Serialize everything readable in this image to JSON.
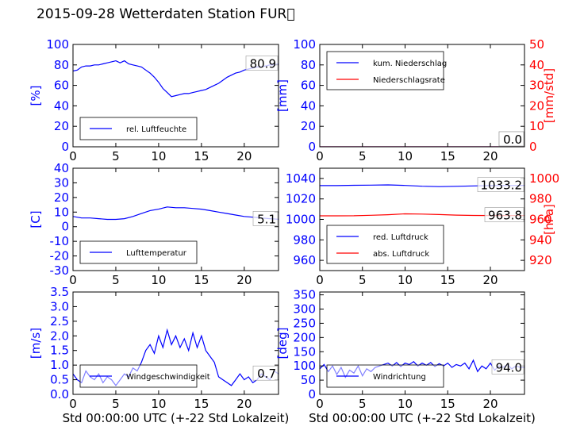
{
  "title": "2015-09-28 Wetterdaten Station FUR\u0000",
  "chart_data": [
    {
      "type": "line",
      "position": "row1-left",
      "ylabel": "[%]",
      "ylim": [
        0,
        100
      ],
      "yticks": [
        0,
        20,
        40,
        60,
        80,
        100
      ],
      "xlim": [
        0,
        24
      ],
      "xticks": [
        0,
        5,
        10,
        15,
        20
      ],
      "xlabel": "",
      "last_value_label": "80.9",
      "legend": "bottom-left",
      "series": [
        {
          "name": "rel. Luftfeuchte",
          "color": "#0000ff",
          "x": [
            0,
            0.5,
            1,
            1.5,
            2,
            2.5,
            3,
            3.5,
            4,
            4.5,
            5,
            5.5,
            6,
            6.5,
            7,
            7.5,
            8,
            8.5,
            9,
            9.5,
            10,
            10.5,
            11,
            11.5,
            12,
            12.5,
            13,
            13.5,
            14,
            14.5,
            15,
            15.5,
            16,
            16.5,
            17,
            17.5,
            18,
            18.5,
            19,
            19.5,
            20,
            20.5,
            21,
            21.5,
            22,
            22.5,
            23,
            23.5,
            24
          ],
          "y": [
            74,
            75,
            78,
            79,
            79,
            80,
            80,
            81,
            82,
            83,
            84,
            82,
            84,
            81,
            80,
            79,
            78,
            75,
            72,
            68,
            63,
            57,
            53,
            49,
            50,
            51,
            52,
            52,
            53,
            54,
            55,
            56,
            58,
            60,
            62,
            65,
            68,
            70,
            72,
            73,
            75,
            76,
            77,
            78,
            78,
            79,
            80,
            80,
            81
          ]
        }
      ]
    },
    {
      "type": "line",
      "position": "row1-right",
      "ylabel": "[mm]",
      "ylim": [
        0,
        100
      ],
      "yticks": [
        0,
        20,
        40,
        60,
        80,
        100
      ],
      "y2label": "[mm/std]",
      "y2lim": [
        0,
        50
      ],
      "y2ticks": [
        0,
        10,
        20,
        30,
        40,
        50
      ],
      "xlim": [
        0,
        24
      ],
      "xticks": [
        0,
        5,
        10,
        15,
        20
      ],
      "xlabel": "",
      "last_value_label": "0.0",
      "last_value_label_2": "0.0",
      "legend": "top-left",
      "series": [
        {
          "name": "kum. Niederschlag",
          "color": "#0000ff",
          "axis": "left",
          "x": [
            0,
            24
          ],
          "y": [
            0,
            0
          ]
        },
        {
          "name": "Niederschlagsrate",
          "color": "#ff0000",
          "axis": "right",
          "x": [
            0,
            24
          ],
          "y": [
            0,
            0
          ]
        }
      ]
    },
    {
      "type": "line",
      "position": "row2-left",
      "ylabel": "[C]",
      "ylim": [
        -30,
        40
      ],
      "yticks": [
        -30,
        -20,
        -10,
        0,
        10,
        20,
        30,
        40
      ],
      "xlim": [
        0,
        24
      ],
      "xticks": [
        0,
        5,
        10,
        15,
        20
      ],
      "xlabel": "",
      "last_value_label": "5.1",
      "legend": "bottom-left",
      "series": [
        {
          "name": "Lufttemperatur",
          "color": "#0000ff",
          "x": [
            0,
            1,
            2,
            3,
            4,
            5,
            6,
            7,
            8,
            9,
            10,
            11,
            12,
            13,
            14,
            15,
            16,
            17,
            18,
            19,
            20,
            21,
            22,
            23,
            24
          ],
          "y": [
            7,
            6,
            6,
            5.5,
            5,
            5,
            5.5,
            7,
            9,
            11,
            12,
            13.5,
            13,
            13,
            12.5,
            12,
            11,
            10,
            9,
            8,
            7,
            6.5,
            6,
            5.5,
            5.1
          ]
        }
      ]
    },
    {
      "type": "line",
      "position": "row2-right",
      "ylabel": "",
      "ylim": [
        950,
        1050
      ],
      "yticks": [
        960,
        980,
        1000,
        1020,
        1040
      ],
      "y2label": "[hPa]",
      "y2lim": [
        910,
        1010
      ],
      "y2ticks": [
        920,
        940,
        960,
        980,
        1000
      ],
      "xlim": [
        0,
        24
      ],
      "xticks": [
        0,
        5,
        10,
        15,
        20
      ],
      "xlabel": "",
      "last_value_label": "1033.2",
      "last_value_label_2": "963.8",
      "legend": "bottom-left",
      "series": [
        {
          "name": "red. Luftdruck",
          "color": "#0000ff",
          "axis": "left",
          "x": [
            0,
            2,
            4,
            6,
            8,
            10,
            12,
            14,
            16,
            18,
            20,
            22,
            24
          ],
          "y": [
            1033,
            1033,
            1033.3,
            1033.5,
            1033.7,
            1033.2,
            1032.4,
            1032,
            1032.3,
            1032.7,
            1033,
            1033.1,
            1033.2
          ]
        },
        {
          "name": "abs. Luftdruck",
          "color": "#ff0000",
          "axis": "right",
          "x": [
            0,
            2,
            4,
            6,
            8,
            10,
            12,
            14,
            16,
            18,
            20,
            22,
            24
          ],
          "y": [
            963.5,
            963.5,
            963.6,
            964,
            964.6,
            965.4,
            965.2,
            964.7,
            964.2,
            963.9,
            963.8,
            963.8,
            963.8
          ]
        }
      ]
    },
    {
      "type": "line",
      "position": "row3-left",
      "ylabel": "[m/s]",
      "ylim": [
        0,
        3.5
      ],
      "yticks": [
        0.0,
        0.5,
        1.0,
        1.5,
        2.0,
        2.5,
        3.0,
        3.5
      ],
      "xlim": [
        0,
        24
      ],
      "xticks": [
        0,
        5,
        10,
        15,
        20
      ],
      "xlabel": "Std 00:00:00 UTC (+-22 Std Lokalzeit)",
      "last_value_label": "0.7",
      "legend": "bottom-left",
      "series": [
        {
          "name": "Windgeschwindigkeit",
          "color": "#0000ff",
          "x": [
            0,
            0.5,
            1,
            1.5,
            2,
            2.5,
            3,
            3.5,
            4,
            4.5,
            5,
            5.5,
            6,
            6.5,
            7,
            7.5,
            8,
            8.5,
            9,
            9.5,
            10,
            10.5,
            11,
            11.5,
            12,
            12.5,
            13,
            13.5,
            14,
            14.5,
            15,
            15.5,
            16,
            16.5,
            17,
            17.5,
            18,
            18.5,
            19,
            19.5,
            20,
            20.5,
            21,
            21.5,
            22,
            22.5,
            23,
            23.5,
            24
          ],
          "y": [
            0.7,
            0.5,
            0.4,
            0.8,
            0.6,
            0.5,
            0.7,
            0.4,
            0.6,
            0.5,
            0.3,
            0.5,
            0.7,
            0.6,
            0.9,
            0.8,
            1.1,
            1.5,
            1.7,
            1.4,
            2.0,
            1.6,
            2.2,
            1.7,
            2.0,
            1.6,
            1.9,
            1.5,
            2.1,
            1.6,
            2.0,
            1.5,
            1.3,
            1.1,
            0.6,
            0.5,
            0.4,
            0.3,
            0.5,
            0.7,
            0.5,
            0.6,
            0.4,
            0.5,
            0.7,
            0.6,
            0.5,
            0.8,
            0.7
          ]
        }
      ]
    },
    {
      "type": "line",
      "position": "row3-right",
      "ylabel": "[deg]",
      "ylim": [
        0,
        360
      ],
      "yticks": [
        0,
        50,
        100,
        150,
        200,
        250,
        300,
        350
      ],
      "xlim": [
        0,
        24
      ],
      "xticks": [
        0,
        5,
        10,
        15,
        20
      ],
      "xlabel": "Std 00:00:00 UTC (+-22 Std Lokalzeit)",
      "last_value_label": "94.0",
      "legend": "bottom-left",
      "series": [
        {
          "name": "Windrichtung",
          "color": "#0000ff",
          "x": [
            0,
            0.5,
            1,
            1.5,
            2,
            2.5,
            3,
            3.5,
            4,
            4.5,
            5,
            5.5,
            6,
            6.5,
            7,
            7.5,
            8,
            8.5,
            9,
            9.5,
            10,
            10.5,
            11,
            11.5,
            12,
            12.5,
            13,
            13.5,
            14,
            14.5,
            15,
            15.5,
            16,
            16.5,
            17,
            17.5,
            18,
            18.5,
            19,
            19.5,
            20,
            20.5,
            21,
            21.5,
            22,
            22.5,
            23,
            23.5,
            24
          ],
          "y": [
            90,
            105,
            80,
            100,
            70,
            95,
            60,
            85,
            75,
            100,
            65,
            90,
            80,
            95,
            100,
            105,
            110,
            100,
            112,
            98,
            110,
            105,
            115,
            100,
            110,
            102,
            112,
            98,
            108,
            100,
            110,
            95,
            105,
            100,
            110,
            90,
            120,
            80,
            100,
            90,
            110,
            85,
            100,
            95,
            105,
            90,
            100,
            95,
            94
          ]
        }
      ]
    }
  ]
}
